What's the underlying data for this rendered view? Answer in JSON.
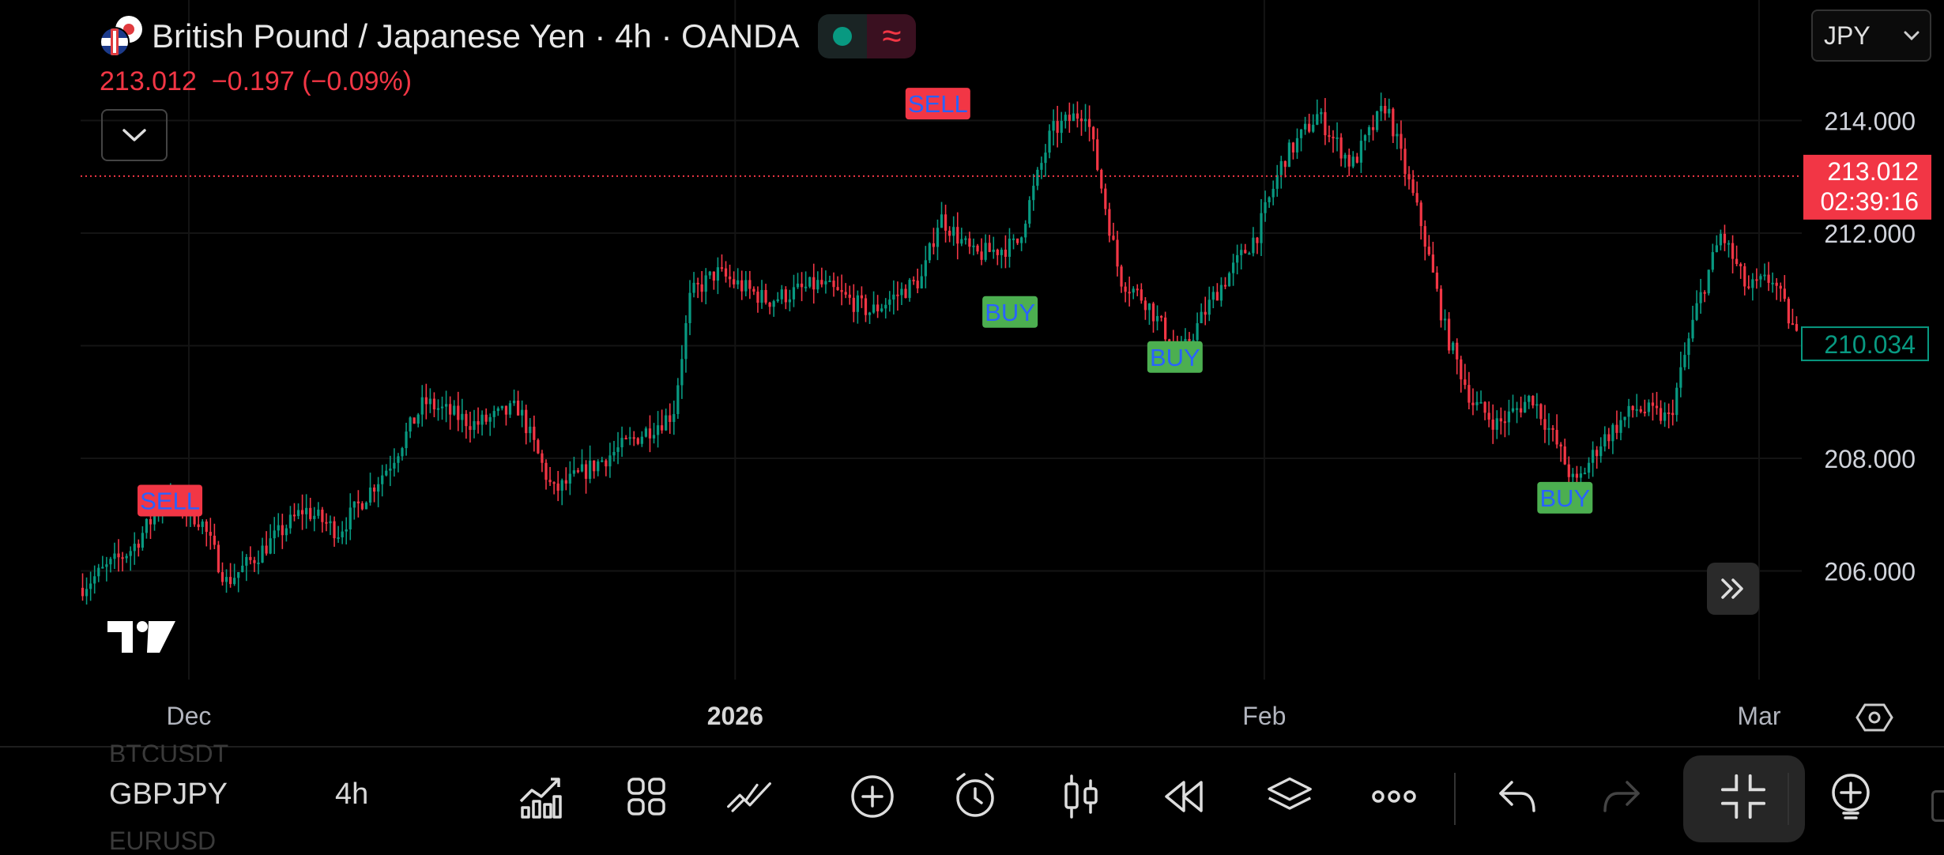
{
  "header": {
    "title": "British Pound / Japanese Yen · 4h · OANDA",
    "last_price": "213.012",
    "change": "−0.197 (−0.09%)",
    "currency": "JPY"
  },
  "colors": {
    "up": "#089981",
    "down": "#f23645",
    "buy_bg": "#4caf50",
    "buy_text": "#2962ff",
    "sell_bg": "#f23645",
    "sell_text": "#2962ff"
  },
  "chart_data": {
    "type": "candlestick",
    "symbol": "GBPJPY",
    "interval": "4h",
    "ylim": [
      204.0,
      216.0
    ],
    "y_ticks": [
      "214.000",
      "212.000",
      "208.000",
      "206.000"
    ],
    "x_ticks": [
      {
        "label": "Dec",
        "t": 0.063,
        "bold": false
      },
      {
        "label": "2026",
        "t": 0.381,
        "bold": true
      },
      {
        "label": "Feb",
        "t": 0.689,
        "bold": false
      },
      {
        "label": "Mar",
        "t": 0.977,
        "bold": false
      }
    ],
    "current_price": {
      "value": 213.012,
      "label": "213.012",
      "countdown": "02:39:16"
    },
    "marker_price": {
      "value": 210.034,
      "label": "210.034"
    },
    "signals": [
      {
        "type": "SELL",
        "label": "SELL",
        "t": 0.052,
        "price": 207.25
      },
      {
        "type": "SELL",
        "label": "SELL",
        "t": 0.499,
        "price": 214.3
      },
      {
        "type": "BUY",
        "label": "BUY",
        "t": 0.541,
        "price": 210.6
      },
      {
        "type": "BUY",
        "label": "BUY",
        "t": 0.637,
        "price": 209.8
      },
      {
        "type": "BUY",
        "label": "BUY",
        "t": 0.864,
        "price": 207.3
      }
    ],
    "path": [
      [
        0.0,
        205.7
      ],
      [
        0.03,
        206.4
      ],
      [
        0.05,
        207.3
      ],
      [
        0.07,
        206.9
      ],
      [
        0.085,
        205.8
      ],
      [
        0.1,
        206.2
      ],
      [
        0.13,
        207.1
      ],
      [
        0.15,
        206.7
      ],
      [
        0.18,
        207.9
      ],
      [
        0.2,
        209.0
      ],
      [
        0.23,
        208.6
      ],
      [
        0.255,
        208.9
      ],
      [
        0.275,
        207.4
      ],
      [
        0.3,
        207.9
      ],
      [
        0.325,
        208.4
      ],
      [
        0.345,
        208.8
      ],
      [
        0.355,
        210.9
      ],
      [
        0.37,
        211.3
      ],
      [
        0.4,
        210.8
      ],
      [
        0.43,
        211.1
      ],
      [
        0.46,
        210.6
      ],
      [
        0.49,
        211.2
      ],
      [
        0.5,
        212.3
      ],
      [
        0.52,
        211.6
      ],
      [
        0.545,
        211.8
      ],
      [
        0.565,
        213.8
      ],
      [
        0.585,
        214.2
      ],
      [
        0.605,
        211.2
      ],
      [
        0.62,
        210.8
      ],
      [
        0.64,
        209.8
      ],
      [
        0.66,
        210.9
      ],
      [
        0.685,
        212.0
      ],
      [
        0.7,
        213.3
      ],
      [
        0.72,
        214.1
      ],
      [
        0.74,
        213.2
      ],
      [
        0.76,
        214.3
      ],
      [
        0.77,
        213.2
      ],
      [
        0.78,
        212.2
      ],
      [
        0.795,
        210.2
      ],
      [
        0.81,
        209.0
      ],
      [
        0.825,
        208.6
      ],
      [
        0.845,
        209.1
      ],
      [
        0.86,
        208.2
      ],
      [
        0.87,
        207.5
      ],
      [
        0.885,
        208.3
      ],
      [
        0.905,
        208.9
      ],
      [
        0.925,
        208.7
      ],
      [
        0.94,
        210.6
      ],
      [
        0.955,
        212.0
      ],
      [
        0.97,
        211.0
      ],
      [
        0.985,
        211.2
      ],
      [
        1.0,
        210.05
      ]
    ]
  },
  "toolbar": {
    "symbol": "GBPJPY",
    "interval": "4h",
    "ghost_above": "BTCUSDT",
    "ghost_below": "EURUSD"
  }
}
